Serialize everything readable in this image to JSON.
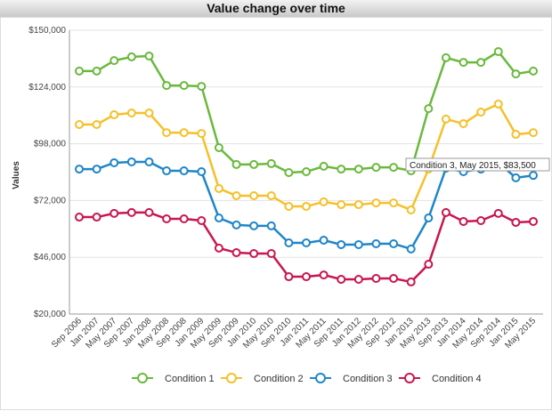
{
  "chart_data": {
    "type": "line",
    "title": "Value change over time",
    "y_label": "Values",
    "annotation": "Condition 3, May 2015, $83,500",
    "categories": [
      "Sep 2006",
      "Jan 2007",
      "May 2007",
      "Sep 2007",
      "Jan 2008",
      "May 2008",
      "Sep 2008",
      "Jan 2009",
      "May 2009",
      "Sep 2009",
      "Jan 2010",
      "May 2010",
      "Sep 2010",
      "Jan 2011",
      "May 2011",
      "Sep 2011",
      "Jan 2012",
      "May 2012",
      "Sep 2012",
      "Jan 2013",
      "May 2013",
      "Sep 2013",
      "Jan 2014",
      "May 2014",
      "Sep 2014",
      "Jan 2015",
      "May 2015"
    ],
    "series": [
      {
        "name": "Condition 1",
        "color": "#6ab93e",
        "values": [
          131300,
          131300,
          136100,
          137800,
          138200,
          124700,
          124700,
          124300,
          96200,
          88500,
          88500,
          88900,
          84800,
          85200,
          87700,
          86400,
          86400,
          87200,
          87200,
          85600,
          114100,
          137400,
          135300,
          135300,
          140200,
          130000,
          131300
        ]
      },
      {
        "name": "Condition 2",
        "color": "#f5c02a",
        "values": [
          106800,
          106800,
          111300,
          112100,
          112100,
          103100,
          103100,
          102700,
          77500,
          74200,
          74200,
          74200,
          69300,
          69300,
          71400,
          70100,
          70100,
          70900,
          70900,
          67700,
          86400,
          109300,
          107200,
          112500,
          116200,
          102300,
          103100
        ]
      },
      {
        "name": "Condition 3",
        "color": "#1f86c8",
        "values": [
          86400,
          86400,
          89300,
          89700,
          89700,
          85600,
          85600,
          85200,
          64000,
          60800,
          60400,
          60400,
          52600,
          52600,
          53800,
          51800,
          51800,
          52200,
          52200,
          49800,
          64000,
          86800,
          85200,
          86400,
          89300,
          82400,
          83500
        ]
      },
      {
        "name": "Condition 4",
        "color": "#c8174e",
        "values": [
          64400,
          64400,
          66100,
          66500,
          66500,
          63600,
          63600,
          62800,
          50200,
          48100,
          47700,
          47700,
          37100,
          37100,
          37900,
          35900,
          35900,
          36300,
          36300,
          34700,
          42800,
          66500,
          62400,
          62800,
          66100,
          62000,
          62400
        ]
      }
    ],
    "ylim": [
      20000,
      150000
    ],
    "yticks": [
      {
        "value": 20000,
        "label": "$20,000"
      },
      {
        "value": 46000,
        "label": "$46,000"
      },
      {
        "value": 72000,
        "label": "$72,000"
      },
      {
        "value": 98000,
        "label": "$98,000"
      },
      {
        "value": 124000,
        "label": "$124,000"
      },
      {
        "value": 150000,
        "label": "$150,000"
      }
    ],
    "grid": true
  }
}
